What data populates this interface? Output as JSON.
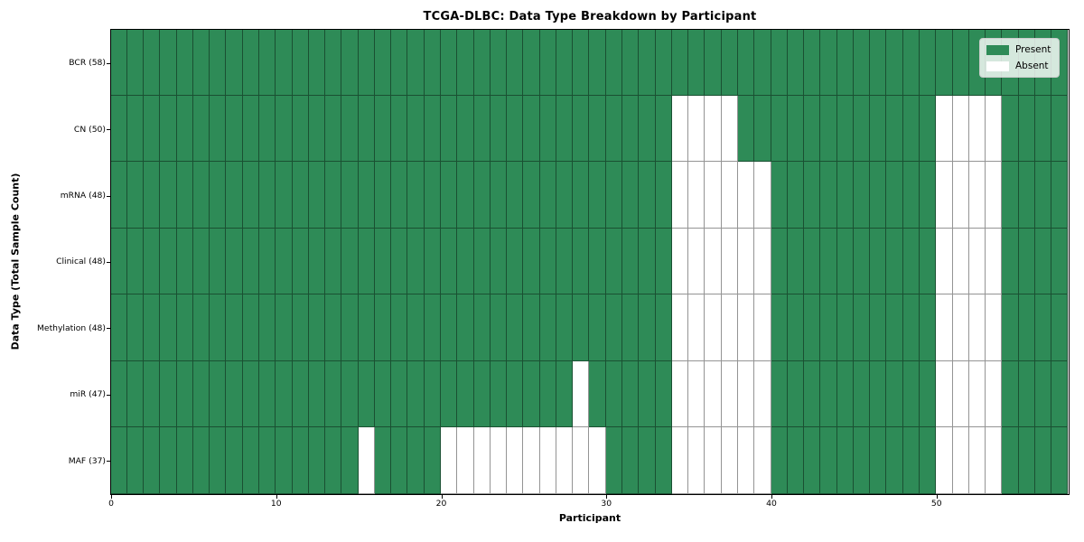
{
  "figure": {
    "title": "TCGA-DLBC: Data Type Breakdown by Participant",
    "xlabel": "Participant",
    "ylabel": "Data Type (Total Sample Count)"
  },
  "legend": {
    "items": [
      {
        "label": "Present",
        "color": "#2E8B57"
      },
      {
        "label": "Absent",
        "color": "#FFFFFF"
      }
    ]
  },
  "chart_data": {
    "type": "heatmap",
    "title": "TCGA-DLBC: Data Type Breakdown by Participant",
    "xlabel": "Participant",
    "ylabel": "Data Type (Total Sample Count)",
    "legend_position": "upper right",
    "x_ticks": [
      0,
      10,
      20,
      30,
      40,
      50
    ],
    "n_participants": 58,
    "x_range": [
      0,
      58
    ],
    "grid": true,
    "colors": {
      "present": "#2E8B57",
      "absent": "#FFFFFF",
      "gridline": "rgba(0,0,0,0.42)"
    },
    "value_legend": {
      "present": "Present",
      "absent": "Absent"
    },
    "rows": [
      {
        "label": "BCR (58)",
        "data_type": "BCR",
        "total_samples": 58,
        "absent_participants": []
      },
      {
        "label": "CN (50)",
        "data_type": "CN",
        "total_samples": 50,
        "absent_participants": [
          34,
          35,
          36,
          37,
          50,
          51,
          52,
          53
        ]
      },
      {
        "label": "mRNA (48)",
        "data_type": "mRNA",
        "total_samples": 48,
        "absent_participants": [
          34,
          35,
          36,
          37,
          38,
          39,
          50,
          51,
          52,
          53
        ]
      },
      {
        "label": "Clinical (48)",
        "data_type": "Clinical",
        "total_samples": 48,
        "absent_participants": [
          34,
          35,
          36,
          37,
          38,
          39,
          50,
          51,
          52,
          53
        ]
      },
      {
        "label": "Methylation (48)",
        "data_type": "Methylation",
        "total_samples": 48,
        "absent_participants": [
          34,
          35,
          36,
          37,
          38,
          39,
          50,
          51,
          52,
          53
        ]
      },
      {
        "label": "miR (47)",
        "data_type": "miR",
        "total_samples": 47,
        "absent_participants": [
          28,
          34,
          35,
          36,
          37,
          38,
          39,
          50,
          51,
          52,
          53
        ]
      },
      {
        "label": "MAF (37)",
        "data_type": "MAF",
        "total_samples": 37,
        "absent_participants": [
          15,
          20,
          21,
          22,
          23,
          24,
          25,
          26,
          27,
          28,
          29,
          34,
          35,
          36,
          37,
          38,
          39,
          50,
          51,
          52,
          53
        ]
      }
    ]
  }
}
